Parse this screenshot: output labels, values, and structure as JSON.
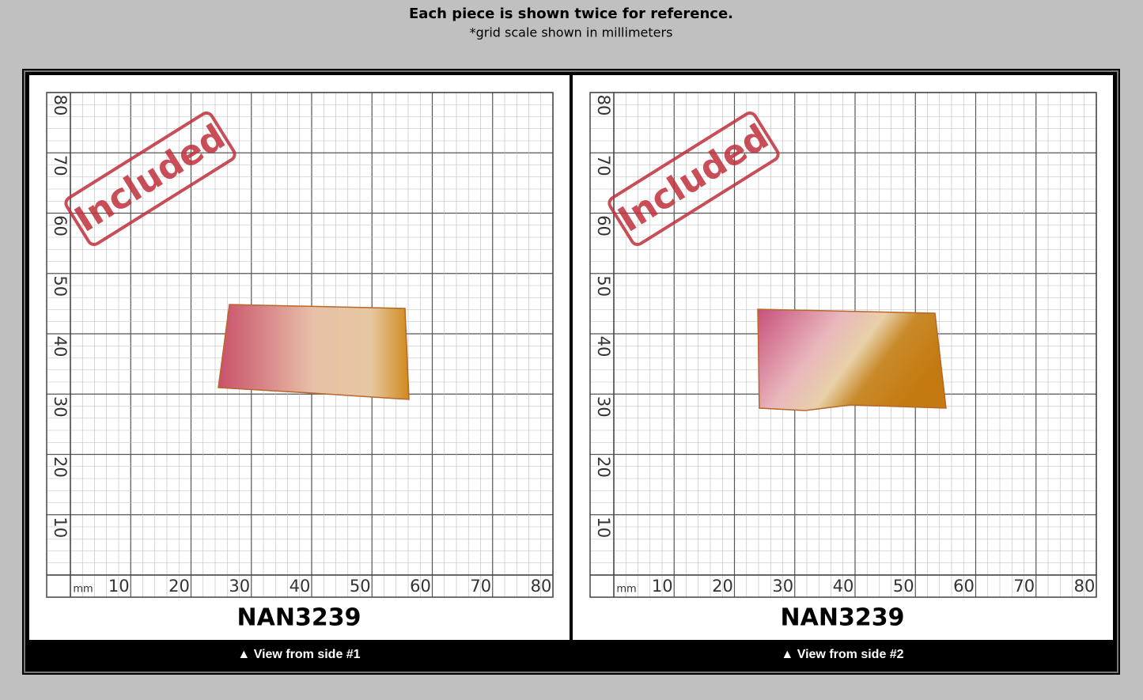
{
  "header": {
    "title": "Each piece is shown twice for reference.",
    "subtitle": "*grid scale shown in millimeters"
  },
  "panels": [
    {
      "stamp": "Included",
      "unit": "mm",
      "x_labels": [
        "10",
        "20",
        "30",
        "40",
        "50",
        "60",
        "70",
        "80"
      ],
      "y_labels": [
        "10",
        "20",
        "30",
        "40",
        "50",
        "60",
        "70",
        "80"
      ],
      "code": "NAN3239",
      "caption": "▲ View from side #1"
    },
    {
      "stamp": "Included",
      "unit": "mm",
      "x_labels": [
        "10",
        "20",
        "30",
        "40",
        "50",
        "60",
        "70",
        "80"
      ],
      "y_labels": [
        "10",
        "20",
        "30",
        "40",
        "50",
        "60",
        "70",
        "80"
      ],
      "code": "NAN3239",
      "caption": "▲ View from side #2"
    }
  ]
}
